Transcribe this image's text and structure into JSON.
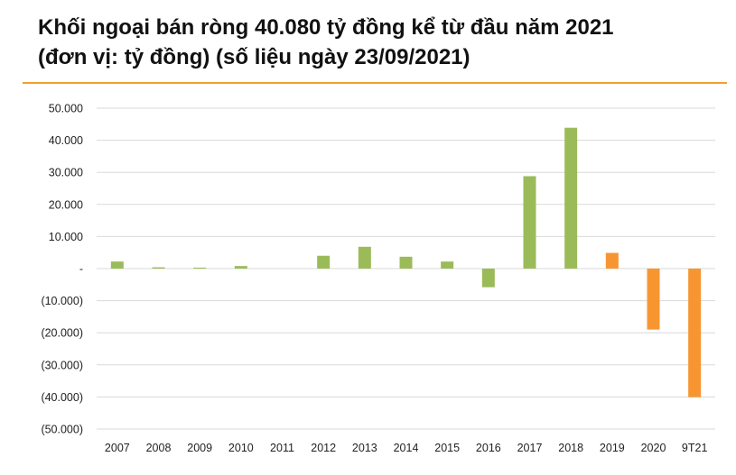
{
  "header": {
    "title_line1": "Khối ngoại bán ròng 40.080 tỷ đồng kể từ đầu năm 2021",
    "title_line2": "(đơn vị: tỷ đồng) (số liệu ngày 23/09/2021)"
  },
  "colors": {
    "accent_rule": "#f0a030",
    "positive_historic": "#9bbb59",
    "recent_years": "#f79631",
    "grid": "#d9d9d9"
  },
  "chart_data": {
    "type": "bar",
    "title": "Khối ngoại bán ròng 40.080 tỷ đồng kể từ đầu năm 2021 (đơn vị: tỷ đồng) (số liệu ngày 23/09/2021)",
    "xlabel": "",
    "ylabel": "",
    "ylim": [
      -50000,
      50000
    ],
    "grid": true,
    "legend": "none",
    "categories": [
      "2007",
      "2008",
      "2009",
      "2010",
      "2011",
      "2012",
      "2013",
      "2014",
      "2015",
      "2016",
      "2017",
      "2018",
      "2019",
      "2020",
      "9T21"
    ],
    "values": [
      2200,
      400,
      300,
      800,
      0,
      4000,
      6800,
      3700,
      2200,
      -5800,
      28800,
      43900,
      4900,
      -19000,
      -40080
    ],
    "bar_colors": [
      "#9bbb59",
      "#9bbb59",
      "#9bbb59",
      "#9bbb59",
      "#9bbb59",
      "#9bbb59",
      "#9bbb59",
      "#9bbb59",
      "#9bbb59",
      "#9bbb59",
      "#9bbb59",
      "#9bbb59",
      "#f79631",
      "#f79631",
      "#f79631"
    ],
    "y_ticks": [
      50000,
      40000,
      30000,
      20000,
      10000,
      0,
      -10000,
      -20000,
      -30000,
      -40000,
      -50000
    ],
    "y_tick_labels": [
      "50.000",
      "40.000",
      "30.000",
      "20.000",
      "10.000",
      "-",
      "(10.000)",
      "(20.000)",
      "(30.000)",
      "(40.000)",
      "(50.000)"
    ]
  }
}
